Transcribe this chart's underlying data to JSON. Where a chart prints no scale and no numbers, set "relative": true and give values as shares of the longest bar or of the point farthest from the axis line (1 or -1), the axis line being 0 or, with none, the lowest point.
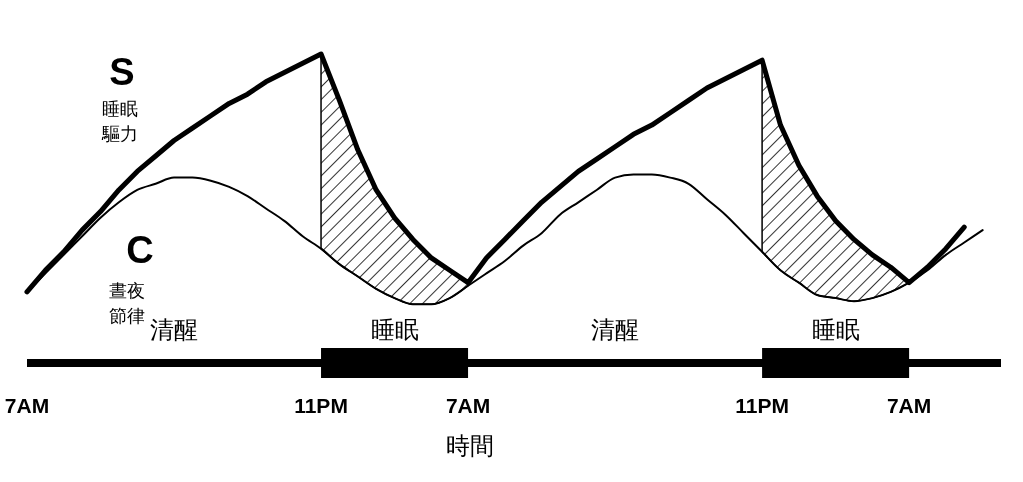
{
  "chart_data": {
    "type": "line",
    "relative": true,
    "xlabel": "時間",
    "categories": [
      "7AM",
      null,
      null,
      null,
      null,
      null,
      null,
      null,
      null,
      null,
      null,
      null,
      null,
      null,
      null,
      null,
      "11PM",
      null,
      null,
      null,
      null,
      null,
      null,
      null,
      "7AM",
      null,
      null,
      null,
      null,
      null,
      null,
      null,
      null,
      null,
      null,
      null,
      null,
      null,
      null,
      null,
      "11PM",
      null,
      null,
      null,
      null,
      null,
      null,
      null,
      "7AM",
      null,
      null,
      null,
      null,
      null
    ],
    "series": [
      {
        "name": "S",
        "color": "#000000",
        "values": [
          0.23,
          0.3,
          0.36,
          0.43,
          0.49,
          0.56,
          0.62,
          0.67,
          0.72,
          0.76,
          0.8,
          0.84,
          0.87,
          0.91,
          0.94,
          0.97,
          1.0,
          0.85,
          0.69,
          0.56,
          0.47,
          0.4,
          0.34,
          0.3,
          0.26,
          0.34,
          0.4,
          0.46,
          0.52,
          0.57,
          0.62,
          0.66,
          0.7,
          0.74,
          0.77,
          0.81,
          0.85,
          0.89,
          0.92,
          0.95,
          0.98,
          0.77,
          0.64,
          0.54,
          0.46,
          0.4,
          0.35,
          0.31,
          0.26,
          0.31,
          0.37,
          0.44,
          null,
          null
        ]
      },
      {
        "name": "C",
        "color": "#000000",
        "values": [
          0.23,
          0.29,
          0.35,
          0.41,
          0.47,
          0.52,
          0.56,
          0.58,
          0.6,
          0.6,
          0.59,
          0.57,
          0.54,
          0.5,
          0.46,
          0.41,
          0.37,
          0.32,
          0.28,
          0.24,
          0.21,
          0.19,
          0.19,
          0.21,
          0.25,
          0.29,
          0.33,
          0.38,
          0.42,
          0.48,
          0.52,
          0.56,
          0.6,
          0.61,
          0.61,
          0.6,
          0.58,
          0.53,
          0.48,
          0.42,
          0.36,
          0.3,
          0.26,
          0.22,
          0.21,
          0.2,
          0.21,
          0.23,
          0.26,
          0.3,
          0.35,
          0.39,
          0.43,
          null
        ]
      },
      {
        "type": "area",
        "color": "#000000",
        "values": [
          null,
          null,
          null,
          null,
          null,
          null,
          null,
          null,
          null,
          null,
          null,
          null,
          null,
          null,
          null,
          null,
          1.0,
          0.85,
          0.69,
          0.56,
          0.47,
          0.4,
          0.34,
          0.3,
          0.26,
          null,
          null,
          null,
          null,
          null,
          null,
          null,
          null,
          null,
          null,
          null,
          null,
          null,
          null,
          null,
          null,
          null,
          null,
          null,
          null,
          null,
          null,
          null,
          null,
          null,
          null,
          null,
          null,
          null
        ]
      },
      {
        "type": "area",
        "color": "#000000",
        "values": [
          null,
          null,
          null,
          null,
          null,
          null,
          null,
          null,
          null,
          null,
          null,
          null,
          null,
          null,
          null,
          null,
          null,
          null,
          null,
          null,
          null,
          null,
          null,
          null,
          null,
          null,
          null,
          null,
          null,
          null,
          null,
          null,
          null,
          null,
          null,
          null,
          null,
          null,
          null,
          null,
          0.98,
          0.77,
          0.64,
          0.54,
          0.46,
          0.4,
          0.35,
          0.31,
          0.26,
          null,
          null,
          null,
          null,
          null
        ]
      },
      {
        "color": "#000000",
        "values": [
          null,
          null,
          null,
          null,
          null,
          null,
          null,
          null,
          null,
          null,
          null,
          null,
          null,
          null,
          null,
          null,
          0,
          0,
          0,
          0,
          0,
          0,
          0,
          0,
          0,
          null,
          null,
          null,
          null,
          null,
          null,
          null,
          null,
          null,
          null,
          null,
          null,
          null,
          null,
          null,
          0,
          0,
          0,
          0,
          0,
          0,
          0,
          0,
          0,
          null,
          null,
          null,
          null,
          null
        ]
      }
    ],
    "annotations": [
      "睡眠驅力",
      "晝夜節律",
      "清醒",
      "睡眠",
      "清醒",
      "睡眠"
    ]
  }
}
